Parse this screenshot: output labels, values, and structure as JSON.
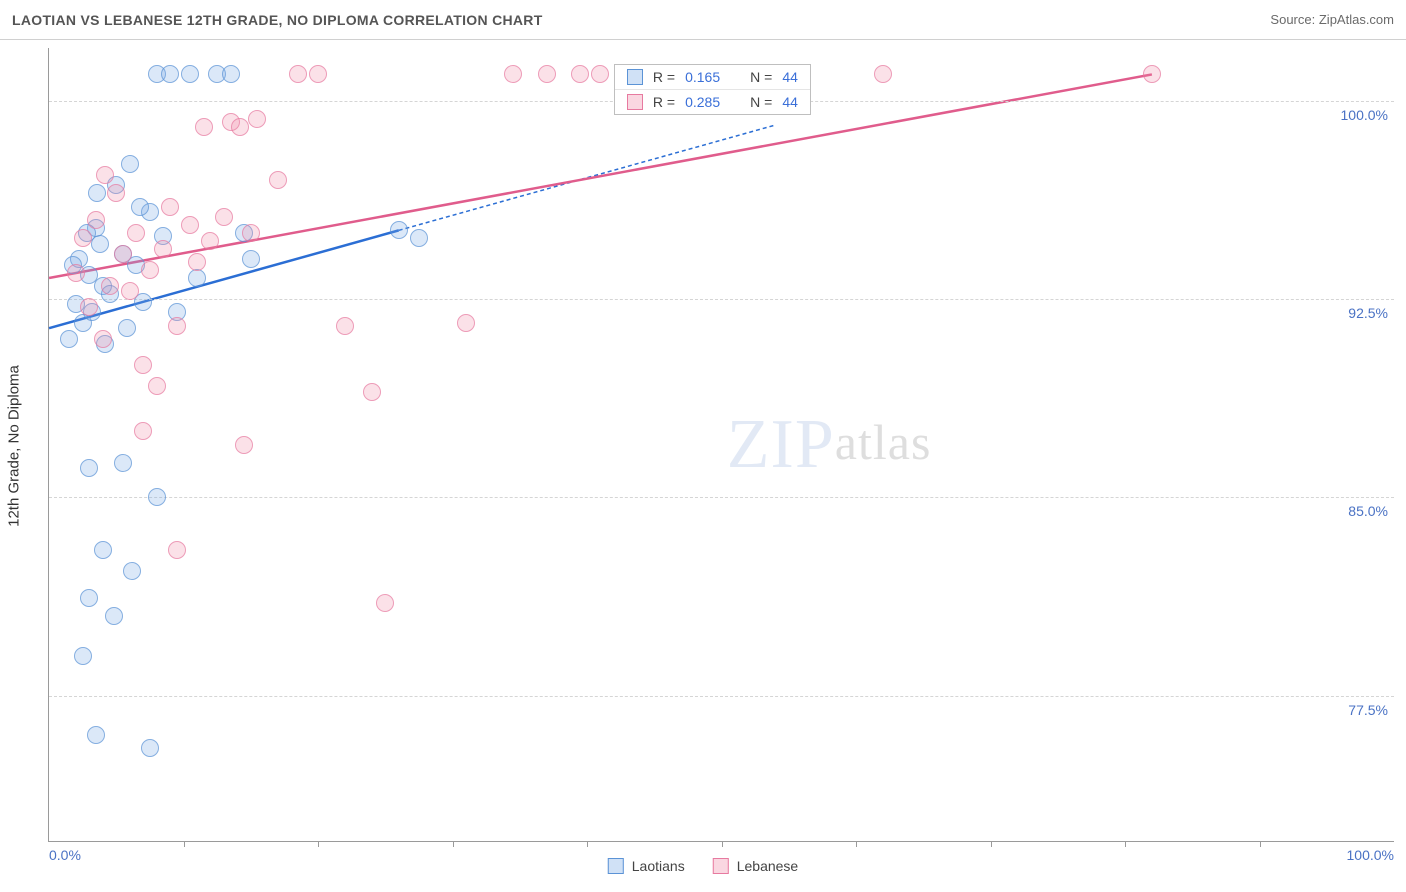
{
  "header": {
    "title": "LAOTIAN VS LEBANESE 12TH GRADE, NO DIPLOMA CORRELATION CHART",
    "source_label": "Source:",
    "source_value": "ZipAtlas.com"
  },
  "watermark": {
    "left": "ZIP",
    "right": "atlas"
  },
  "chart": {
    "type": "scatter",
    "ylabel": "12th Grade, No Diploma",
    "background_color": "#ffffff",
    "grid_color": "#d5d5d5",
    "axis_color": "#9a9a9a",
    "tick_label_color": "#4a72c4",
    "tick_fontsize": 14,
    "ylabel_fontsize": 15,
    "point_radius": 9,
    "xlim": [
      0,
      100
    ],
    "ylim": [
      72,
      102
    ],
    "yticks": [
      {
        "value": 77.5,
        "label": "77.5%"
      },
      {
        "value": 85.0,
        "label": "85.0%"
      },
      {
        "value": 92.5,
        "label": "92.5%"
      },
      {
        "value": 100.0,
        "label": "100.0%"
      }
    ],
    "xticks_minor": [
      10,
      20,
      30,
      40,
      50,
      60,
      70,
      80,
      90
    ],
    "xticks_labeled": [
      {
        "value": 0,
        "label": "0.0%"
      },
      {
        "value": 100,
        "label": "100.0%"
      }
    ],
    "series": [
      {
        "id": "s1",
        "name": "Laotians",
        "fill_color": "rgba(120,170,230,0.35)",
        "stroke_color": "#5b93d6",
        "trend_color": "#2b6ed4",
        "trend_width": 2.5,
        "R": "0.165",
        "N": "44",
        "trend": {
          "x1": 0,
          "y1": 91.4,
          "x2": 26,
          "y2": 95.1,
          "dashed_extend_to": 54
        },
        "points": [
          [
            1.5,
            91.0
          ],
          [
            2.0,
            92.3
          ],
          [
            2.2,
            94.0
          ],
          [
            2.5,
            91.6
          ],
          [
            3.0,
            93.4
          ],
          [
            3.2,
            92.0
          ],
          [
            3.5,
            95.2
          ],
          [
            3.8,
            94.6
          ],
          [
            4.0,
            93.0
          ],
          [
            4.2,
            90.8
          ],
          [
            4.5,
            92.7
          ],
          [
            5.0,
            96.8
          ],
          [
            5.5,
            94.2
          ],
          [
            5.8,
            91.4
          ],
          [
            6.0,
            97.6
          ],
          [
            6.5,
            93.8
          ],
          [
            7.0,
            92.4
          ],
          [
            7.5,
            95.8
          ],
          [
            8.0,
            101.0
          ],
          [
            8.5,
            94.9
          ],
          [
            9.0,
            101.0
          ],
          [
            9.5,
            92.0
          ],
          [
            10.5,
            101.0
          ],
          [
            11.0,
            93.3
          ],
          [
            12.5,
            101.0
          ],
          [
            13.5,
            101.0
          ],
          [
            14.5,
            95.0
          ],
          [
            3.0,
            86.1
          ],
          [
            5.5,
            86.3
          ],
          [
            3.0,
            81.2
          ],
          [
            4.8,
            80.5
          ],
          [
            2.5,
            79.0
          ],
          [
            3.5,
            76.0
          ],
          [
            7.5,
            75.5
          ],
          [
            6.2,
            82.2
          ],
          [
            4.0,
            83.0
          ],
          [
            8.0,
            85.0
          ],
          [
            1.8,
            93.8
          ],
          [
            2.8,
            95.0
          ],
          [
            3.6,
            96.5
          ],
          [
            6.8,
            96.0
          ],
          [
            15.0,
            94.0
          ],
          [
            26.0,
            95.1
          ],
          [
            27.5,
            94.8
          ]
        ]
      },
      {
        "id": "s2",
        "name": "Lebanese",
        "fill_color": "rgba(240,140,170,0.35)",
        "stroke_color": "#e77aa0",
        "trend_color": "#e05c8c",
        "trend_width": 2.5,
        "R": "0.285",
        "N": "44",
        "trend": {
          "x1": 0,
          "y1": 93.3,
          "x2": 82,
          "y2": 101.0
        },
        "points": [
          [
            2.0,
            93.5
          ],
          [
            2.5,
            94.8
          ],
          [
            3.0,
            92.2
          ],
          [
            3.5,
            95.5
          ],
          [
            4.0,
            91.0
          ],
          [
            4.5,
            93.0
          ],
          [
            5.0,
            96.5
          ],
          [
            5.5,
            94.2
          ],
          [
            6.0,
            92.8
          ],
          [
            6.5,
            95.0
          ],
          [
            7.0,
            90.0
          ],
          [
            7.5,
            93.6
          ],
          [
            8.0,
            89.2
          ],
          [
            8.5,
            94.4
          ],
          [
            9.0,
            96.0
          ],
          [
            9.5,
            91.5
          ],
          [
            10.5,
            95.3
          ],
          [
            11.0,
            93.9
          ],
          [
            11.5,
            99.0
          ],
          [
            12.0,
            94.7
          ],
          [
            13.0,
            95.6
          ],
          [
            13.5,
            99.2
          ],
          [
            14.2,
            99.0
          ],
          [
            15.0,
            95.0
          ],
          [
            15.5,
            99.3
          ],
          [
            17.0,
            97.0
          ],
          [
            18.5,
            101.0
          ],
          [
            20.0,
            101.0
          ],
          [
            22.0,
            91.5
          ],
          [
            24.0,
            89.0
          ],
          [
            7.0,
            87.5
          ],
          [
            9.5,
            83.0
          ],
          [
            14.5,
            87.0
          ],
          [
            25.0,
            81.0
          ],
          [
            31.0,
            91.6
          ],
          [
            34.5,
            101.0
          ],
          [
            37.0,
            101.0
          ],
          [
            39.5,
            101.0
          ],
          [
            41.0,
            101.0
          ],
          [
            49.5,
            101.0
          ],
          [
            53.0,
            101.0
          ],
          [
            62.0,
            101.0
          ],
          [
            82.0,
            101.0
          ],
          [
            4.2,
            97.2
          ]
        ]
      }
    ],
    "stats_box": {
      "left_pct": 42,
      "top_pct": 2,
      "rows": [
        {
          "series": "s1",
          "r_label": "R =",
          "r": "0.165",
          "n_label": "N =",
          "n": "44"
        },
        {
          "series": "s2",
          "r_label": "R =",
          "r": "0.285",
          "n_label": "N =",
          "n": "44"
        }
      ]
    }
  },
  "bottom_legend": {
    "items": [
      {
        "series": "s1",
        "label": "Laotians"
      },
      {
        "series": "s2",
        "label": "Lebanese"
      }
    ]
  }
}
